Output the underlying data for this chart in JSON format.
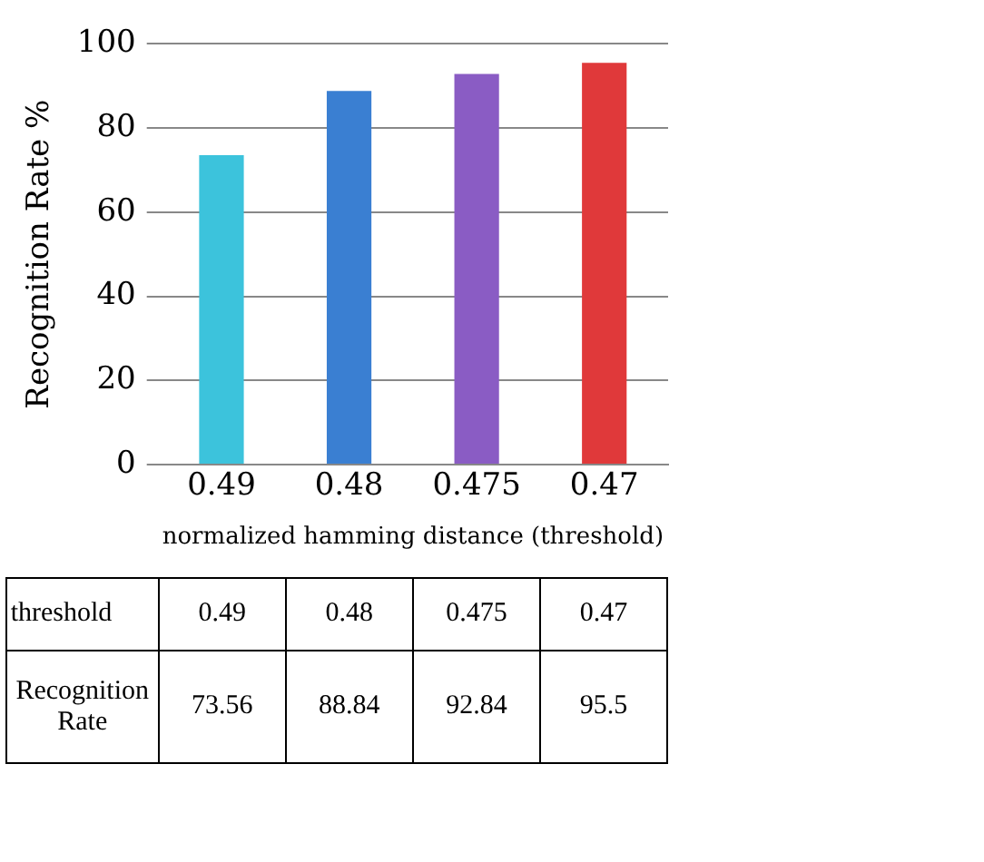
{
  "chart_data": {
    "type": "bar",
    "xlabel": "normalized hamming distance (threshold)",
    "ylabel": "Recognition Rate %",
    "categories": [
      "0.49",
      "0.48",
      "0.475",
      "0.47"
    ],
    "values": [
      73.56,
      88.84,
      92.84,
      95.5
    ],
    "colors": [
      "#3cc3dc",
      "#3a7fd2",
      "#8a5cc4",
      "#e0393a"
    ],
    "ylim": [
      0,
      100
    ],
    "yticks": [
      0,
      20,
      40,
      60,
      80,
      100
    ],
    "grid": "y",
    "legend": false,
    "data_labels": true,
    "annotations": [
      "threshold",
      "Recognition Rate"
    ]
  }
}
